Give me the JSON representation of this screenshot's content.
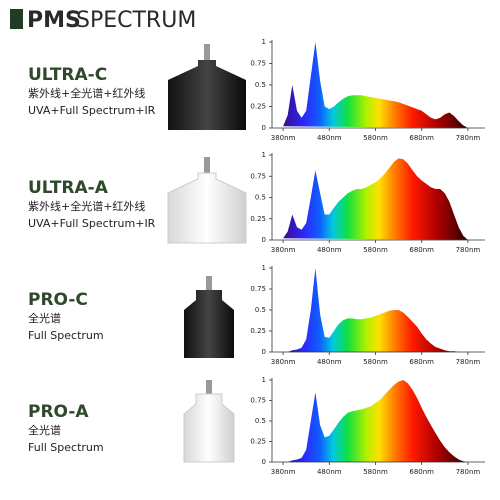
{
  "header": {
    "brand": "PMS",
    "title": "SPECTRUM"
  },
  "products": [
    {
      "name": "ULTRA-C",
      "lines": [
        "紫外线+全光谱+红外线",
        "UVA+Full Spectrum+IR"
      ]
    },
    {
      "name": "ULTRA-A",
      "lines": [
        "紫外线+全光谱+红外线",
        "UVA+Full Spectrum+IR"
      ]
    },
    {
      "name": "PRO-C",
      "lines": [
        "全光谱",
        "Full Spectrum"
      ]
    },
    {
      "name": "PRO-A",
      "lines": [
        "全光谱",
        "Full Spectrum"
      ]
    }
  ],
  "chart_data": [
    {
      "type": "area",
      "x": [
        380,
        390,
        400,
        410,
        420,
        430,
        440,
        450,
        460,
        470,
        480,
        490,
        500,
        510,
        520,
        530,
        540,
        550,
        560,
        570,
        580,
        590,
        600,
        610,
        620,
        630,
        640,
        650,
        660,
        670,
        680,
        690,
        700,
        710,
        720,
        730,
        740,
        750,
        760,
        770,
        780
      ],
      "values": [
        0.02,
        0.15,
        0.5,
        0.2,
        0.12,
        0.2,
        0.6,
        1.0,
        0.55,
        0.25,
        0.22,
        0.25,
        0.3,
        0.34,
        0.37,
        0.38,
        0.38,
        0.38,
        0.37,
        0.36,
        0.35,
        0.34,
        0.33,
        0.32,
        0.31,
        0.3,
        0.28,
        0.26,
        0.24,
        0.22,
        0.2,
        0.16,
        0.12,
        0.1,
        0.12,
        0.16,
        0.18,
        0.14,
        0.08,
        0.03,
        0
      ],
      "xlim": [
        356,
        817
      ],
      "ylim": [
        0,
        1
      ],
      "xticks": [
        {
          "value": 380,
          "label": "380nm"
        },
        {
          "value": 480,
          "label": "480nm"
        },
        {
          "value": 580,
          "label": "580nm"
        },
        {
          "value": 680,
          "label": "680nm"
        },
        {
          "value": 780,
          "label": "780nm"
        }
      ],
      "yticks": [
        0,
        0.25,
        0.5,
        0.75,
        1
      ]
    },
    {
      "type": "area",
      "x": [
        380,
        390,
        400,
        410,
        420,
        430,
        440,
        450,
        460,
        470,
        480,
        490,
        500,
        510,
        520,
        530,
        540,
        550,
        560,
        570,
        580,
        590,
        600,
        610,
        620,
        630,
        640,
        650,
        660,
        670,
        680,
        690,
        700,
        710,
        720,
        730,
        740,
        750,
        760,
        770,
        780
      ],
      "values": [
        0.02,
        0.1,
        0.3,
        0.15,
        0.12,
        0.2,
        0.5,
        0.82,
        0.55,
        0.3,
        0.3,
        0.38,
        0.45,
        0.5,
        0.55,
        0.58,
        0.6,
        0.6,
        0.62,
        0.65,
        0.68,
        0.72,
        0.78,
        0.85,
        0.92,
        0.96,
        0.95,
        0.9,
        0.82,
        0.75,
        0.7,
        0.66,
        0.62,
        0.6,
        0.6,
        0.55,
        0.45,
        0.3,
        0.15,
        0.05,
        0
      ],
      "xlim": [
        356,
        817
      ],
      "ylim": [
        0,
        1
      ],
      "xticks": [
        {
          "value": 380,
          "label": "380nm"
        },
        {
          "value": 480,
          "label": "480nm"
        },
        {
          "value": 580,
          "label": "580nm"
        },
        {
          "value": 680,
          "label": "680nm"
        },
        {
          "value": 780,
          "label": "780nm"
        }
      ],
      "yticks": [
        0,
        0.25,
        0.5,
        0.75,
        1
      ]
    },
    {
      "type": "area",
      "x": [
        380,
        390,
        400,
        410,
        420,
        430,
        440,
        450,
        460,
        470,
        480,
        490,
        500,
        510,
        520,
        530,
        540,
        550,
        560,
        570,
        580,
        590,
        600,
        610,
        620,
        630,
        640,
        650,
        660,
        670,
        680,
        690,
        700,
        710,
        720,
        730,
        740,
        750,
        760,
        770,
        780
      ],
      "values": [
        0,
        0,
        0.02,
        0.03,
        0.05,
        0.15,
        0.5,
        1.0,
        0.45,
        0.18,
        0.17,
        0.25,
        0.33,
        0.38,
        0.4,
        0.4,
        0.39,
        0.39,
        0.4,
        0.41,
        0.43,
        0.45,
        0.47,
        0.49,
        0.5,
        0.5,
        0.47,
        0.42,
        0.36,
        0.3,
        0.22,
        0.15,
        0.1,
        0.06,
        0.04,
        0.02,
        0.01,
        0.01,
        0,
        0,
        0
      ],
      "xlim": [
        356,
        817
      ],
      "ylim": [
        0,
        1
      ],
      "xticks": [
        {
          "value": 380,
          "label": "380nm"
        },
        {
          "value": 480,
          "label": "480nm"
        },
        {
          "value": 580,
          "label": "580nm"
        },
        {
          "value": 680,
          "label": "680nm"
        },
        {
          "value": 780,
          "label": "780nm"
        }
      ],
      "yticks": [
        0,
        0.25,
        0.5,
        0.75,
        1
      ]
    },
    {
      "type": "area",
      "x": [
        380,
        390,
        400,
        410,
        420,
        430,
        440,
        450,
        460,
        470,
        480,
        490,
        500,
        510,
        520,
        530,
        540,
        550,
        560,
        570,
        580,
        590,
        600,
        610,
        620,
        630,
        640,
        650,
        660,
        670,
        680,
        690,
        700,
        710,
        720,
        730,
        740,
        750,
        760,
        770,
        780
      ],
      "values": [
        0,
        0,
        0.02,
        0.03,
        0.05,
        0.15,
        0.5,
        0.85,
        0.45,
        0.3,
        0.32,
        0.4,
        0.48,
        0.55,
        0.6,
        0.62,
        0.63,
        0.64,
        0.66,
        0.68,
        0.72,
        0.76,
        0.82,
        0.88,
        0.94,
        0.98,
        1.0,
        0.96,
        0.88,
        0.78,
        0.66,
        0.55,
        0.45,
        0.35,
        0.26,
        0.18,
        0.12,
        0.07,
        0.03,
        0.01,
        0
      ],
      "xlim": [
        356,
        817
      ],
      "ylim": [
        0,
        1
      ],
      "xticks": [
        {
          "value": 380,
          "label": "380nm"
        },
        {
          "value": 480,
          "label": "480nm"
        },
        {
          "value": 580,
          "label": "580nm"
        },
        {
          "value": 680,
          "label": "680nm"
        },
        {
          "value": 780,
          "label": "780nm"
        }
      ],
      "yticks": [
        0,
        0.25,
        0.5,
        0.75,
        1
      ]
    }
  ]
}
